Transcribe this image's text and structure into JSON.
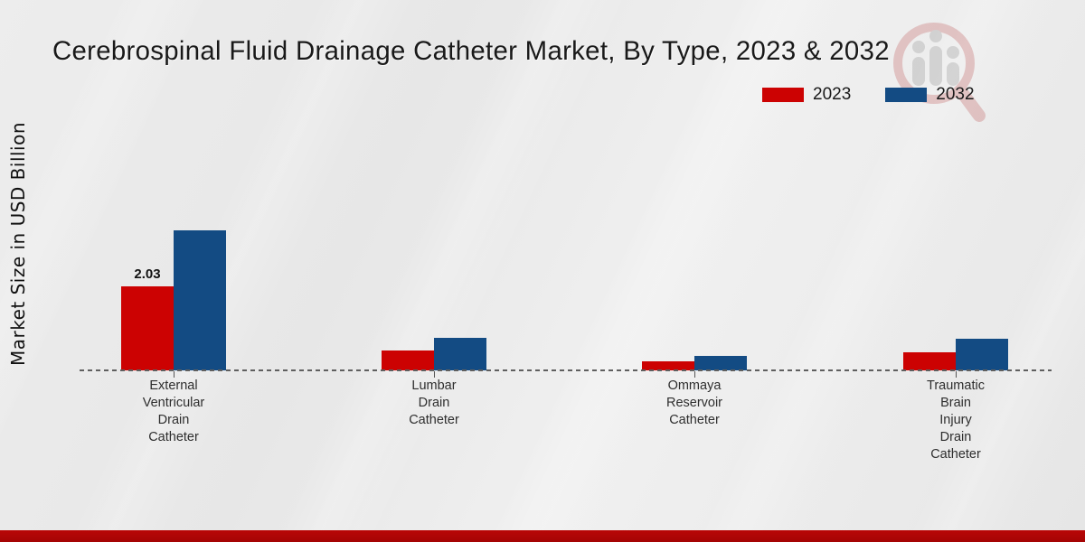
{
  "title": "Cerebrospinal Fluid Drainage Catheter Market, By Type, 2023 & 2032",
  "y_axis_label": "Market Size in USD Billion",
  "legend": {
    "items": [
      {
        "label": "2023",
        "color": "#cc0202"
      },
      {
        "label": "2032",
        "color": "#134b83"
      }
    ]
  },
  "colors": {
    "series_2023": "#cc0202",
    "series_2032": "#134b83",
    "footer_stripe": "#b90707",
    "baseline_gray": "#5f5f5f",
    "background": "#eaeaea"
  },
  "watermark": {
    "icon": "magnifier-growth-bars-logo"
  },
  "chart_data": {
    "type": "bar",
    "categories": [
      "External Ventricular Drain Catheter",
      "Lumbar Drain Catheter",
      "Ommaya Reservoir Catheter",
      "Traumatic Brain Injury Drain Catheter"
    ],
    "series": [
      {
        "name": "2023",
        "color": "#cc0202",
        "values": [
          2.03,
          0.48,
          0.22,
          0.44
        ]
      },
      {
        "name": "2032",
        "color": "#134b83",
        "values": [
          3.38,
          0.79,
          0.35,
          0.77
        ]
      }
    ],
    "bar_labels": [
      {
        "series": "2023",
        "category_index": 0,
        "text": "2.03"
      }
    ],
    "title": "Cerebrospinal Fluid Drainage Catheter Market, By Type, 2023 & 2032",
    "xlabel": "",
    "ylabel": "Market Size in USD Billion",
    "ylim": [
      0,
      3.9
    ],
    "grid": false,
    "legend_position": "top-right",
    "baseline_style": "dashed"
  }
}
